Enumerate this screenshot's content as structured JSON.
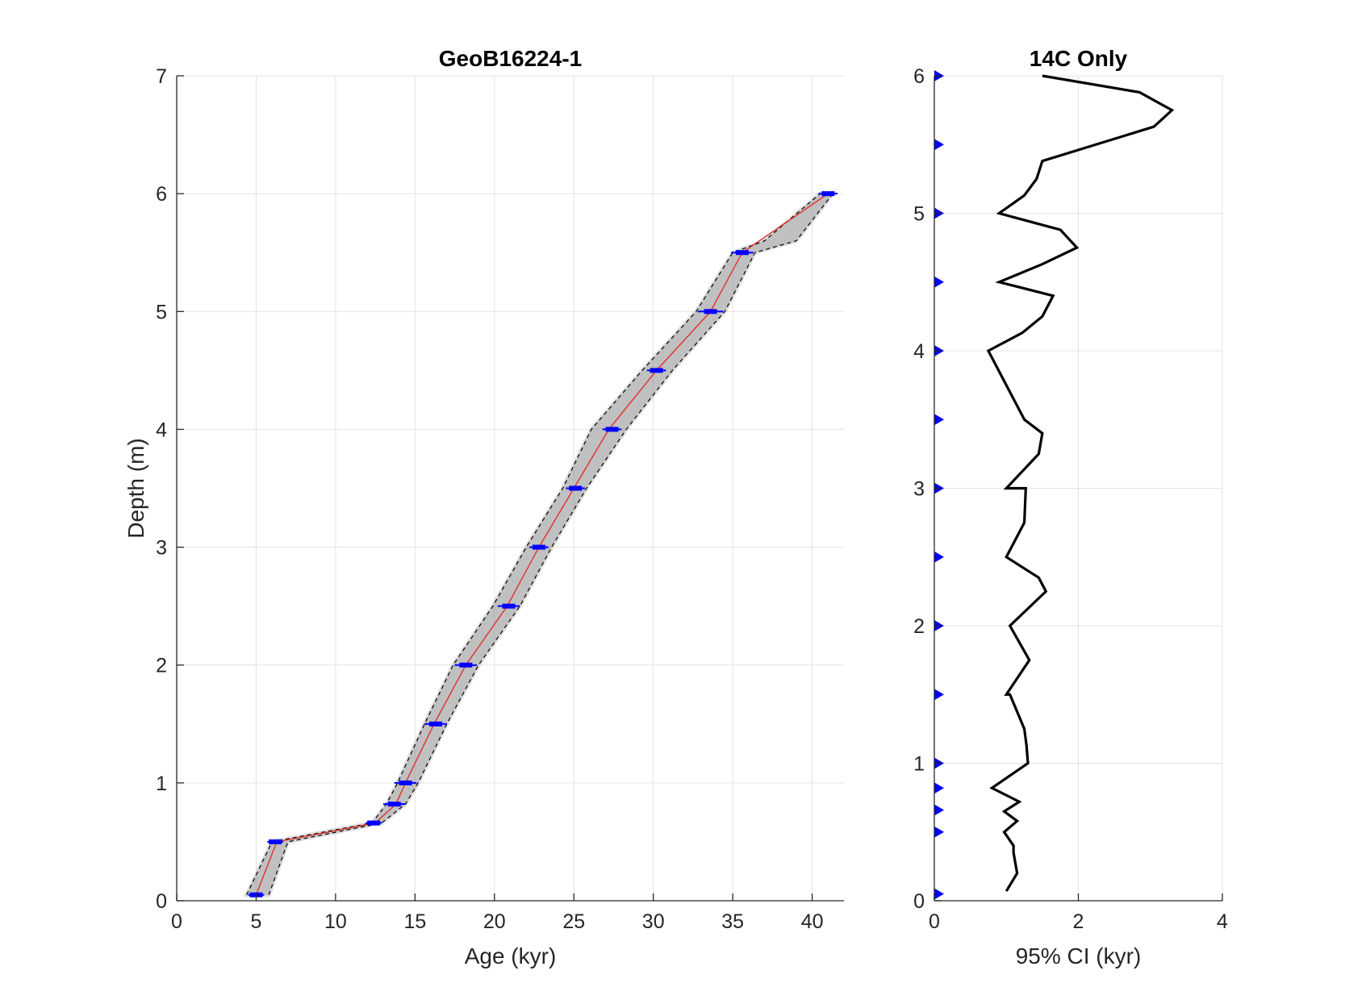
{
  "chart_data": [
    {
      "type": "line",
      "title": "GeoB16224-1",
      "xlabel": "Age (kyr)",
      "ylabel": "Depth (m)",
      "xlim": [
        0,
        42
      ],
      "ylim": [
        0,
        7
      ],
      "xticks": [
        0,
        5,
        10,
        15,
        20,
        25,
        30,
        35,
        40
      ],
      "yticks": [
        0,
        1,
        2,
        3,
        4,
        5,
        6,
        7
      ],
      "grid": true,
      "series": [
        {
          "role": "median",
          "color": "#e0302a",
          "x": [
            5.0,
            6.3,
            12.5,
            13.8,
            14.4,
            16.2,
            18.2,
            20.8,
            22.8,
            25.0,
            27.2,
            30.2,
            33.6,
            35.6,
            41.0
          ],
          "y": [
            0.05,
            0.5,
            0.66,
            0.82,
            1.0,
            1.5,
            2.0,
            2.5,
            3.0,
            3.5,
            4.0,
            4.5,
            5.0,
            5.5,
            6.0
          ]
        },
        {
          "role": "lower-95",
          "color": "#000000",
          "x": [
            4.4,
            6.0,
            12.3,
            13.2,
            13.9,
            15.6,
            17.4,
            19.9,
            22.0,
            24.3,
            26.1,
            29.3,
            32.7,
            35.0,
            37.0,
            40.5
          ],
          "y": [
            0.05,
            0.5,
            0.66,
            0.82,
            1.0,
            1.5,
            2.0,
            2.5,
            3.0,
            3.5,
            4.0,
            4.5,
            5.0,
            5.5,
            5.6,
            6.0
          ]
        },
        {
          "role": "upper-95",
          "color": "#000000",
          "x": [
            5.8,
            7.0,
            12.9,
            14.4,
            15.2,
            17.0,
            19.0,
            21.6,
            23.6,
            25.8,
            28.3,
            31.2,
            34.5,
            36.4,
            39.0,
            41.3
          ],
          "y": [
            0.05,
            0.5,
            0.66,
            0.82,
            1.0,
            1.5,
            2.0,
            2.5,
            3.0,
            3.5,
            4.0,
            4.5,
            5.0,
            5.5,
            5.6,
            6.0
          ]
        }
      ],
      "age_controls": {
        "color": "#0000ff",
        "points": [
          {
            "age": 5.0,
            "depth": 0.05,
            "err": 0.5
          },
          {
            "age": 6.2,
            "depth": 0.5,
            "err": 0.5
          },
          {
            "age": 12.4,
            "depth": 0.66,
            "err": 0.5
          },
          {
            "age": 13.7,
            "depth": 0.82,
            "err": 0.7
          },
          {
            "age": 14.4,
            "depth": 1.0,
            "err": 0.7
          },
          {
            "age": 16.3,
            "depth": 1.5,
            "err": 0.7
          },
          {
            "age": 18.2,
            "depth": 2.0,
            "err": 0.7
          },
          {
            "age": 20.9,
            "depth": 2.5,
            "err": 0.7
          },
          {
            "age": 22.8,
            "depth": 3.0,
            "err": 0.6
          },
          {
            "age": 25.1,
            "depth": 3.5,
            "err": 0.6
          },
          {
            "age": 27.4,
            "depth": 4.0,
            "err": 0.6
          },
          {
            "age": 30.2,
            "depth": 4.5,
            "err": 0.6
          },
          {
            "age": 33.6,
            "depth": 5.0,
            "err": 0.8
          },
          {
            "age": 35.6,
            "depth": 5.5,
            "err": 0.7
          },
          {
            "age": 41.0,
            "depth": 6.0,
            "err": 0.6
          }
        ]
      }
    },
    {
      "type": "line",
      "title": "14C Only",
      "xlabel": "95% CI (kyr)",
      "ylabel": "",
      "xlim": [
        0,
        4
      ],
      "ylim": [
        0,
        6
      ],
      "xticks": [
        0,
        2,
        4
      ],
      "yticks": [
        0,
        1,
        2,
        3,
        4,
        5,
        6
      ],
      "grid": true,
      "series": [
        {
          "role": "ci-width",
          "color": "#000000",
          "x": [
            1.0,
            1.15,
            1.1,
            1.1,
            0.97,
            1.15,
            0.97,
            1.18,
            0.8,
            1.3,
            1.28,
            1.25,
            1.05,
            1.0,
            1.32,
            1.05,
            1.45,
            1.55,
            1.45,
            1.0,
            1.25,
            1.27,
            1.0,
            1.45,
            1.5,
            1.25,
            0.75,
            1.22,
            1.5,
            1.65,
            0.9,
            1.5,
            1.98,
            1.75,
            0.9,
            1.25,
            1.42,
            1.5,
            3.05,
            3.3,
            2.85,
            1.5
          ],
          "y": [
            0.07,
            0.2,
            0.35,
            0.4,
            0.5,
            0.58,
            0.65,
            0.72,
            0.82,
            1.0,
            1.13,
            1.25,
            1.5,
            1.5,
            1.75,
            2.0,
            2.2,
            2.25,
            2.35,
            2.5,
            2.75,
            3.0,
            3.0,
            3.25,
            3.4,
            3.5,
            4.0,
            4.13,
            4.25,
            4.4,
            4.5,
            4.63,
            4.75,
            4.88,
            5.0,
            5.13,
            5.25,
            5.38,
            5.63,
            5.75,
            5.88,
            6.0
          ]
        }
      ],
      "markers": {
        "color": "#0000ff",
        "depths": [
          0.05,
          0.5,
          0.66,
          0.82,
          1.0,
          1.5,
          2.0,
          2.5,
          3.0,
          3.5,
          4.0,
          4.5,
          5.0,
          5.5,
          6.0
        ]
      }
    }
  ]
}
